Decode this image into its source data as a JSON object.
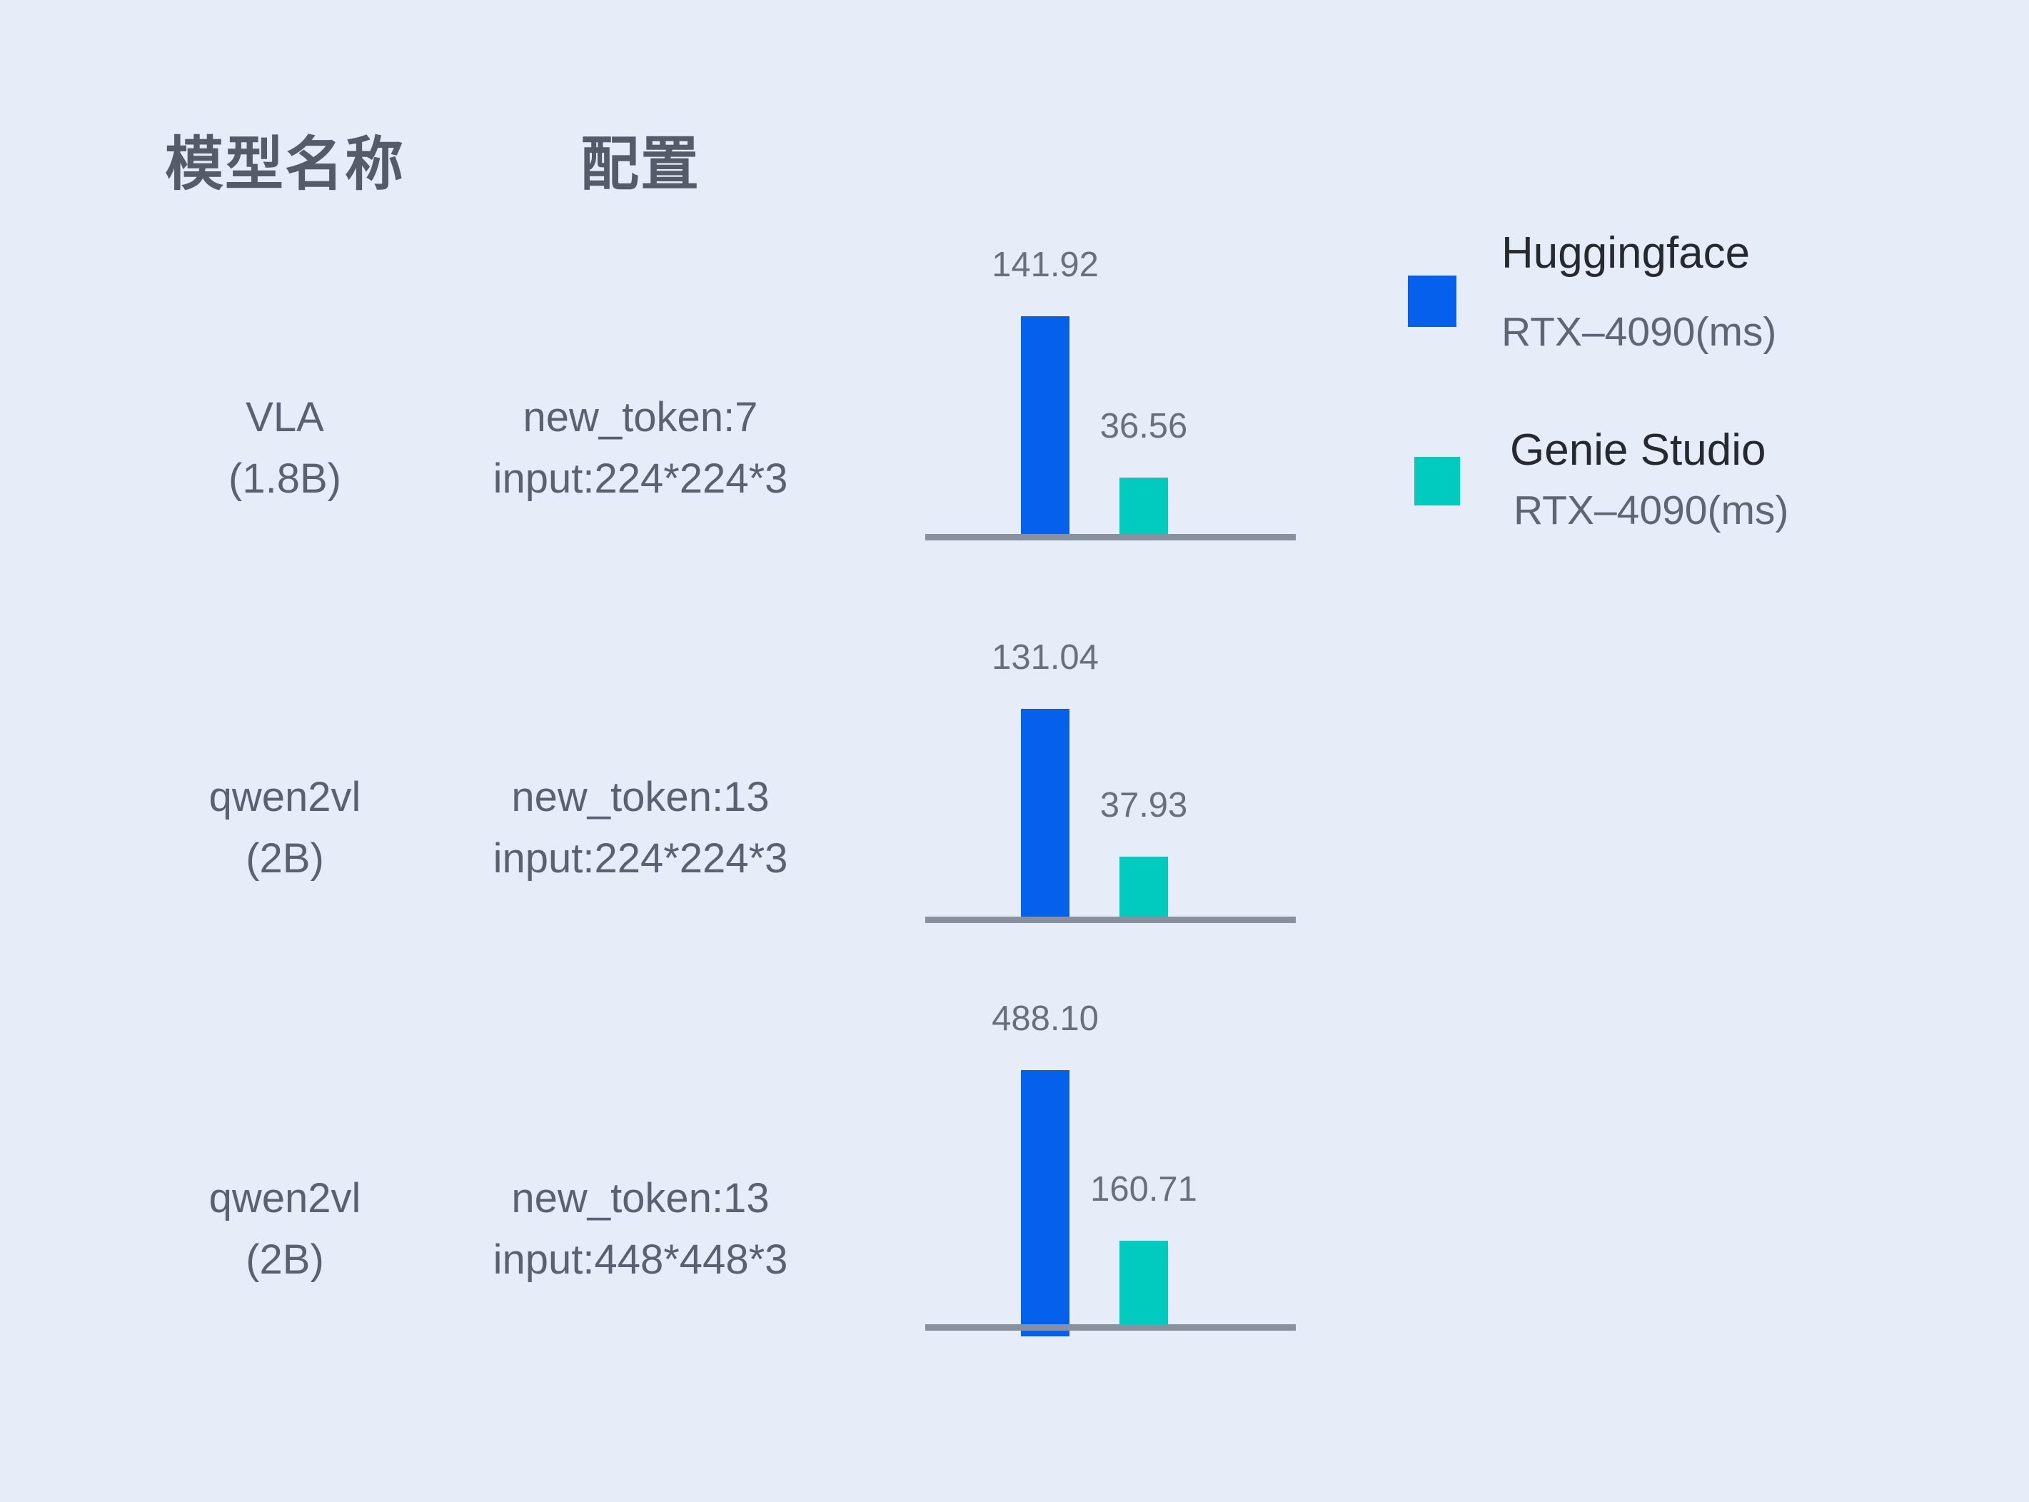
{
  "header": {
    "model_name_label": "模型名称",
    "config_label": "配置"
  },
  "legend": {
    "items": [
      {
        "name": "Huggingface",
        "sub": "RTX–4090(ms)",
        "color": "#0560EC"
      },
      {
        "name": "Genie Studio",
        "sub": "RTX–4090(ms)",
        "color": "#00CBBE"
      }
    ]
  },
  "chart_data": {
    "type": "bar",
    "unit": "ms",
    "grid": false,
    "legend_position": "right",
    "categories": [
      "VLA (1.8B) | new_token:7 input:224*224*3",
      "qwen2vl (2B) | new_token:13 input:224*224*3",
      "qwen2vl (2B) | new_token:13 input:448*448*3"
    ],
    "series": [
      {
        "name": "Huggingface RTX–4090(ms)",
        "color": "#0560EC",
        "values": [
          141.92,
          131.04,
          488.1
        ]
      },
      {
        "name": "Genie Studio RTX–4090(ms)",
        "color": "#00CBBE",
        "values": [
          36.56,
          37.93,
          160.71
        ]
      }
    ],
    "rows": [
      {
        "model_line1": "VLA",
        "model_line2": "(1.8B)",
        "config_line1": "new_token:7",
        "config_line2": "input:224*224*3",
        "huggingface_ms": 141.92,
        "huggingface_label": "141.92",
        "genie_ms": 36.56,
        "genie_label": "36.56"
      },
      {
        "model_line1": "qwen2vl",
        "model_line2": "(2B)",
        "config_line1": "new_token:13",
        "config_line2": "input:224*224*3",
        "huggingface_ms": 131.04,
        "huggingface_label": "131.04",
        "genie_ms": 37.93,
        "genie_label": "37.93"
      },
      {
        "model_line1": "qwen2vl",
        "model_line2": "(2B)",
        "config_line1": "new_token:13",
        "config_line2": "input:448*448*3",
        "huggingface_ms": 488.1,
        "huggingface_label": "488.10",
        "genie_ms": 160.71,
        "genie_label": "160.71"
      }
    ],
    "colors": {
      "huggingface": "#0560EC",
      "genie_studio": "#00CBBE",
      "axis": "#8A919E"
    }
  }
}
